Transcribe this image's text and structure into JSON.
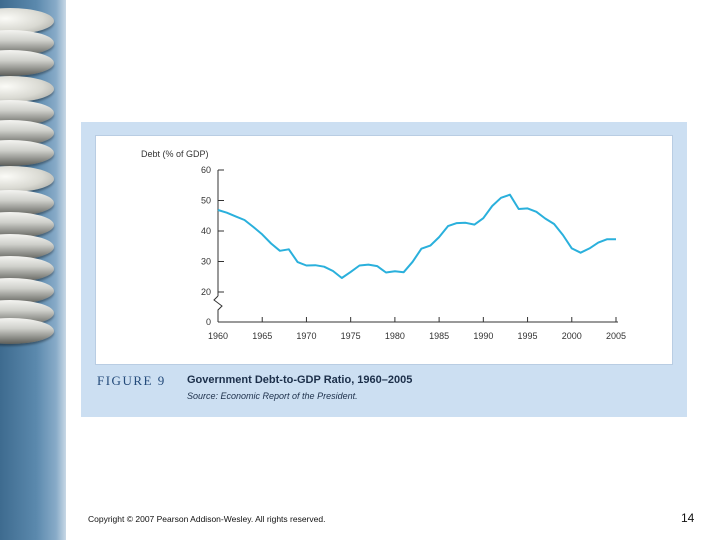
{
  "slide": {
    "copyright": "Copyright © 2007 Pearson Addison-Wesley. All rights reserved.",
    "page_number": "14"
  },
  "figure": {
    "label": "FIGURE 9",
    "title": "Government Debt-to-GDP Ratio, 1960–2005",
    "source": "Source: Economic Report of the President."
  },
  "colors": {
    "line": "#2ab0dc",
    "panel": "#ccdff2",
    "caption_label": "#234a7a"
  },
  "chart_data": {
    "type": "line",
    "title": "Government Debt-to-GDP Ratio, 1960–2005",
    "ylabel": "Debt (% of GDP)",
    "xlabel": "",
    "xlim": [
      1960,
      2005
    ],
    "ylim": [
      0,
      60
    ],
    "axis_break": true,
    "grid": false,
    "x_ticks": [
      1960,
      1965,
      1970,
      1975,
      1980,
      1985,
      1990,
      1995,
      2000,
      2005
    ],
    "y_ticks": [
      0,
      20,
      30,
      40,
      50,
      60
    ],
    "series": [
      {
        "name": "Debt-to-GDP ratio",
        "x": [
          1960,
          1961,
          1962,
          1963,
          1964,
          1965,
          1966,
          1967,
          1968,
          1969,
          1970,
          1971,
          1972,
          1973,
          1974,
          1975,
          1976,
          1977,
          1978,
          1979,
          1980,
          1981,
          1982,
          1983,
          1984,
          1985,
          1986,
          1987,
          1988,
          1989,
          1990,
          1991,
          1992,
          1993,
          1994,
          1995,
          1996,
          1997,
          1998,
          1999,
          2000,
          2001,
          2002,
          2003,
          2004,
          2005
        ],
        "values": [
          46.9,
          46.0,
          44.8,
          43.6,
          41.3,
          38.9,
          35.9,
          33.5,
          34.0,
          29.8,
          28.7,
          28.8,
          28.3,
          26.9,
          24.6,
          26.6,
          28.7,
          29.0,
          28.5,
          26.4,
          26.8,
          26.5,
          29.9,
          34.2,
          35.2,
          38.0,
          41.6,
          42.6,
          42.7,
          42.1,
          44.2,
          48.2,
          50.9,
          51.9,
          47.2,
          47.4,
          46.3,
          44.1,
          42.3,
          38.7,
          34.3,
          32.9,
          34.3,
          36.2,
          37.3,
          37.3
        ]
      }
    ]
  }
}
